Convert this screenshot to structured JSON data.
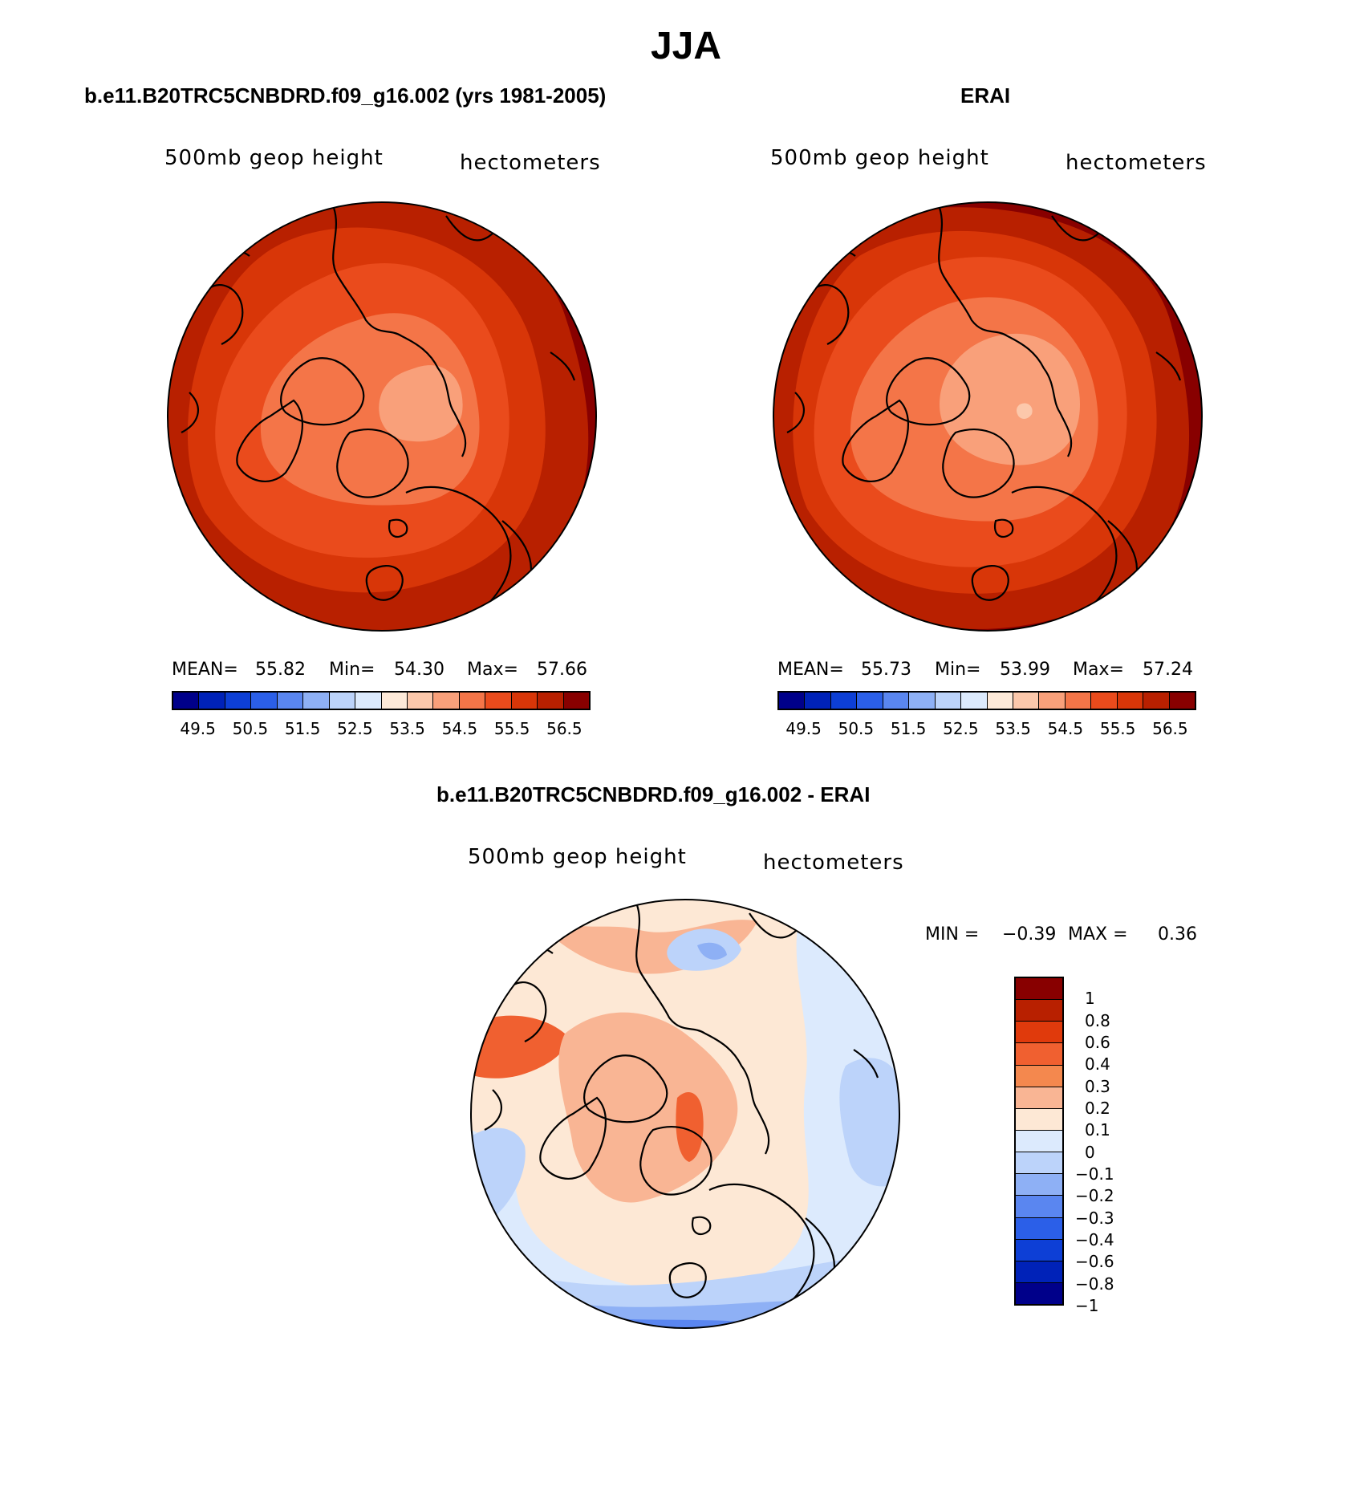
{
  "title": "JJA",
  "panels": {
    "model": {
      "title": "b.e11.B20TRC5CNBDRD.f09_g16.002 (yrs 1981-2005)",
      "subtitle_left": "500mb geop height",
      "subtitle_right": "hectometers",
      "mean_label": "MEAN=",
      "mean": "55.82",
      "min_label": "Min=",
      "min": "54.30",
      "max_label": "Max=",
      "max": "57.66"
    },
    "obs": {
      "title": "ERAI",
      "subtitle_left": "500mb geop height",
      "subtitle_right": "hectometers",
      "mean_label": "MEAN=",
      "mean": "55.73",
      "min_label": "Min=",
      "min": "53.99",
      "max_label": "Max=",
      "max": "57.24"
    },
    "diff": {
      "title": "b.e11.B20TRC5CNBDRD.f09_g16.002 - ERAI",
      "subtitle_left": "500mb geop height",
      "subtitle_right": "hectometers",
      "min_label": "MIN =",
      "min": "−0.39",
      "max_label": "MAX =",
      "max": "0.36"
    }
  },
  "colorbar_abs": {
    "colors": [
      "#00008a",
      "#0022b8",
      "#0d3fd6",
      "#2b5fe8",
      "#5a86f0",
      "#8eb0f5",
      "#bcd3fa",
      "#dceafd",
      "#fde9d8",
      "#fcc8ab",
      "#f9a07a",
      "#f47548",
      "#ea4b1c",
      "#d83608",
      "#b82000",
      "#880000"
    ],
    "ticks": [
      "49.5",
      "50.5",
      "51.5",
      "52.5",
      "53.5",
      "54.5",
      "55.5",
      "56.5"
    ]
  },
  "colorbar_diff": {
    "colors": [
      "#880000",
      "#b82000",
      "#e03a0c",
      "#f06030",
      "#f4884e",
      "#f9b594",
      "#fde8d5",
      "#dceafd",
      "#bcd3fa",
      "#8eb0f5",
      "#5a86f0",
      "#2b5fe8",
      "#0d3fd6",
      "#0022b8",
      "#00008a"
    ],
    "ticks": [
      "1",
      "0.8",
      "0.6",
      "0.4",
      "0.3",
      "0.2",
      "0.1",
      "0",
      "−0.1",
      "−0.2",
      "−0.3",
      "−0.4",
      "−0.6",
      "−0.8",
      "−1"
    ]
  }
}
